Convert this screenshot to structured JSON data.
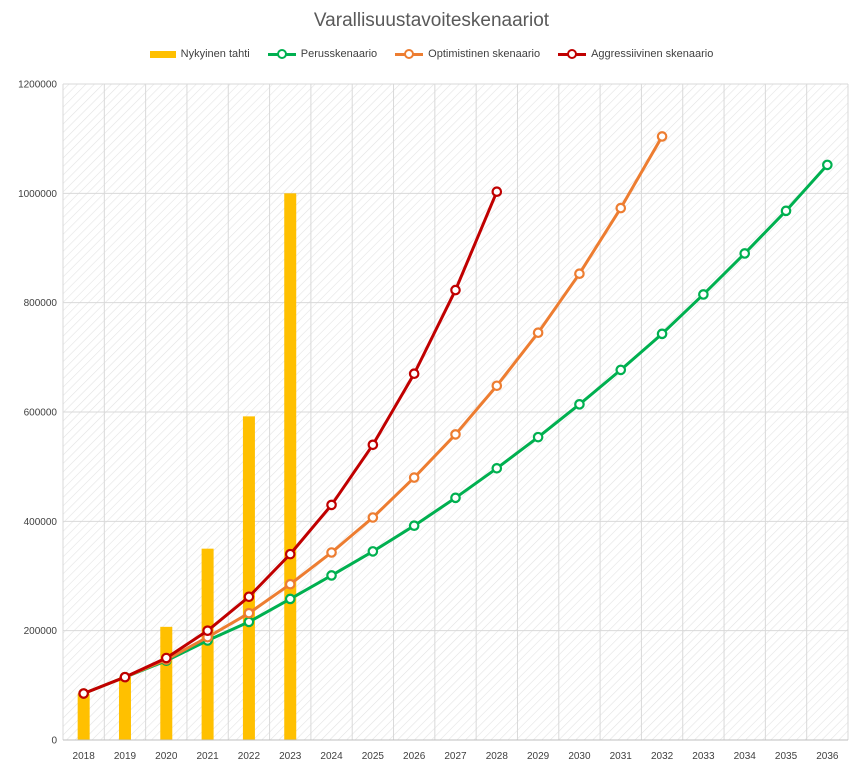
{
  "chart_data": {
    "type": "bar",
    "title": "Varallisuustavoiteskenaariot",
    "xlabel": "",
    "ylabel": "",
    "ylim": [
      0,
      1200000
    ],
    "yticks": [
      "0",
      "200000",
      "400000",
      "600000",
      "800000",
      "1000000",
      "1200000"
    ],
    "categories": [
      "2018",
      "2019",
      "2020",
      "2021",
      "2022",
      "2023",
      "2024",
      "2025",
      "2026",
      "2027",
      "2028",
      "2029",
      "2030",
      "2031",
      "2032",
      "2033",
      "2034",
      "2035",
      "2036"
    ],
    "legend_position": "top",
    "grid": true,
    "series": [
      {
        "name": "Nykyinen tahti",
        "type": "bar",
        "color": "#FFC000",
        "values": [
          85000,
          115000,
          207000,
          350000,
          592000,
          1000000,
          null,
          null,
          null,
          null,
          null,
          null,
          null,
          null,
          null,
          null,
          null,
          null,
          null
        ]
      },
      {
        "name": "Perusskenaario",
        "type": "line",
        "color": "#00B050",
        "values": [
          85000,
          115000,
          145000,
          182000,
          216000,
          258000,
          301000,
          345000,
          392000,
          443000,
          497000,
          554000,
          614000,
          677000,
          743000,
          815000,
          890000,
          968000,
          1052000
        ]
      },
      {
        "name": "Optimistinen skenaario",
        "type": "line",
        "color": "#ED7D31",
        "values": [
          85000,
          115000,
          147000,
          188000,
          232000,
          285000,
          343000,
          407000,
          480000,
          559000,
          648000,
          745000,
          853000,
          973000,
          1104000,
          null,
          null,
          null,
          null
        ]
      },
      {
        "name": "Aggressiivinen skenaario",
        "type": "line",
        "color": "#C00000",
        "values": [
          85000,
          115000,
          150000,
          200000,
          262000,
          340000,
          430000,
          540000,
          670000,
          823000,
          1003000,
          null,
          null,
          null,
          null,
          null,
          null,
          null,
          null
        ]
      }
    ]
  }
}
